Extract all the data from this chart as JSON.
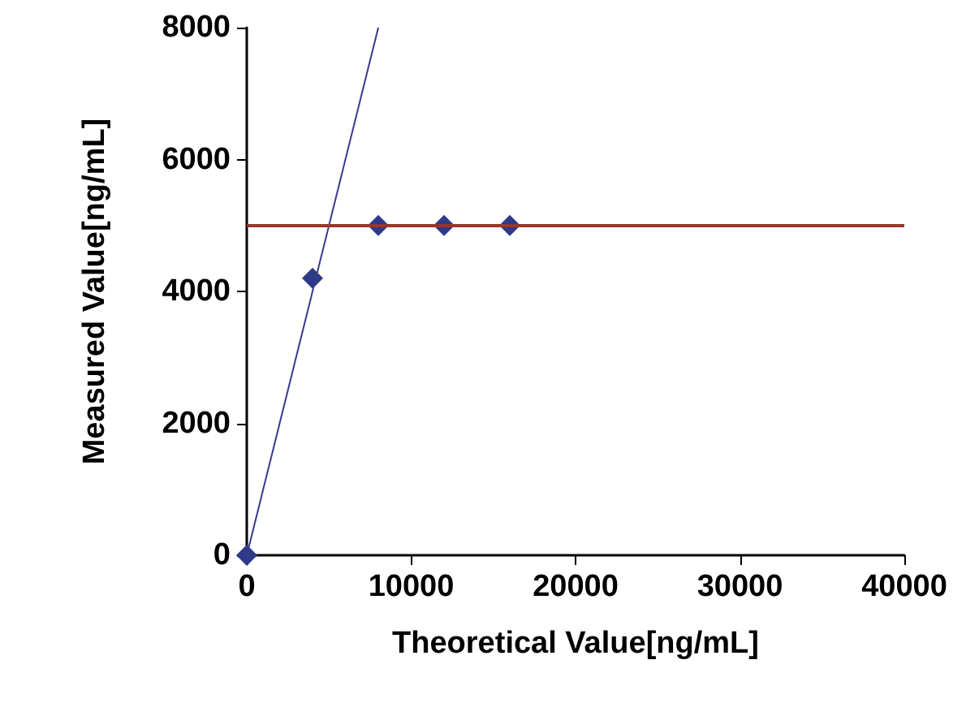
{
  "chart_data": {
    "type": "scatter",
    "xlabel": "Theoretical Value[ng/mL]",
    "ylabel": "Measured Value[ng/mL]",
    "xlim": [
      0,
      40000
    ],
    "xticks": [
      0,
      10000,
      20000,
      30000,
      40000
    ],
    "ylim": [
      0,
      8000
    ],
    "yticks": [
      0,
      2000,
      4000,
      6000,
      8000
    ],
    "marker": "diamond",
    "series": [
      {
        "color": "#2e3a87",
        "x": [
          0,
          4000,
          8000,
          12000,
          16000
        ],
        "values": [
          0,
          4200,
          5000,
          5000,
          5000
        ]
      },
      {
        "type": "line",
        "color": "#3a3a8c",
        "marker": "none",
        "x": [
          0,
          8000
        ],
        "values": [
          0,
          8000
        ]
      }
    ],
    "ref_lines": [
      {
        "axis": "y",
        "value": 5000,
        "color": "#9c3528"
      }
    ]
  }
}
